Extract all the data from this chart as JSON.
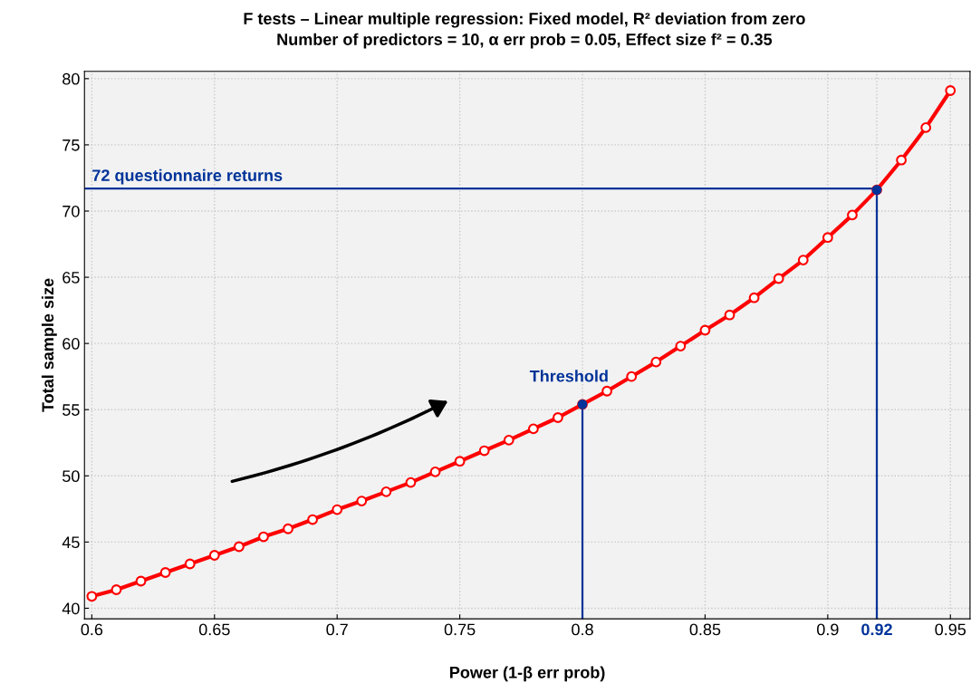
{
  "chart_data": {
    "type": "line",
    "title": "F tests – Linear multiple regression: Fixed model, R² deviation from zero",
    "subtitle": "Number of predictors = 10, α err prob = 0.05, Effect size f² = 0.35",
    "xlabel": "Power (1-β err prob)",
    "ylabel": "Total sample size",
    "series": [
      {
        "color": "#ff0000",
        "marker": "circle",
        "x": [
          0.6,
          0.61,
          0.62,
          0.63,
          0.64,
          0.65,
          0.66,
          0.67,
          0.68,
          0.69,
          0.7,
          0.71,
          0.72,
          0.73,
          0.74,
          0.75,
          0.76,
          0.77,
          0.78,
          0.79,
          0.8,
          0.81,
          0.82,
          0.83,
          0.84,
          0.85,
          0.86,
          0.87,
          0.88,
          0.89,
          0.9,
          0.91,
          0.92,
          0.93,
          0.94,
          0.95
        ],
        "values": [
          40.9,
          41.4,
          42.05,
          42.7,
          43.35,
          44.0,
          44.65,
          45.4,
          46.0,
          46.7,
          47.45,
          48.1,
          48.8,
          49.5,
          50.3,
          51.1,
          51.9,
          52.7,
          53.55,
          54.4,
          55.4,
          56.4,
          57.5,
          58.6,
          59.8,
          61.0,
          62.15,
          63.45,
          64.9,
          66.3,
          68.0,
          69.7,
          71.6,
          73.85,
          76.3,
          79.1
        ]
      },
      {
        "color": "#003399",
        "marker": "none",
        "x": [
          0.597,
          0.92,
          0.92
        ],
        "values": [
          71.7,
          71.7,
          39.2
        ]
      },
      {
        "color": "#003399",
        "marker": "none",
        "x": [
          0.8,
          0.8
        ],
        "values": [
          55.4,
          39.2
        ]
      },
      {
        "type": "scatter",
        "color": "#003399",
        "marker": "circle",
        "x": [
          0.8,
          0.92
        ],
        "values": [
          55.4,
          71.6
        ]
      }
    ],
    "annotations": [
      {
        "text": "72 questionnaire returns",
        "x": 0.6,
        "y": 71.7
      },
      {
        "text": "Threshold",
        "x": 0.8,
        "y": 55.4
      }
    ],
    "xlim": [
      0.597,
      0.958
    ],
    "ylim": [
      39.2,
      80.55
    ],
    "xticks": [
      0.6,
      0.65,
      0.7,
      0.75,
      0.8,
      0.85,
      0.9,
      {
        "value": 0.92,
        "label": "0.92"
      },
      0.95
    ],
    "yticks": [
      40,
      45,
      50,
      55,
      60,
      65,
      70,
      75,
      80
    ],
    "grid": true
  }
}
